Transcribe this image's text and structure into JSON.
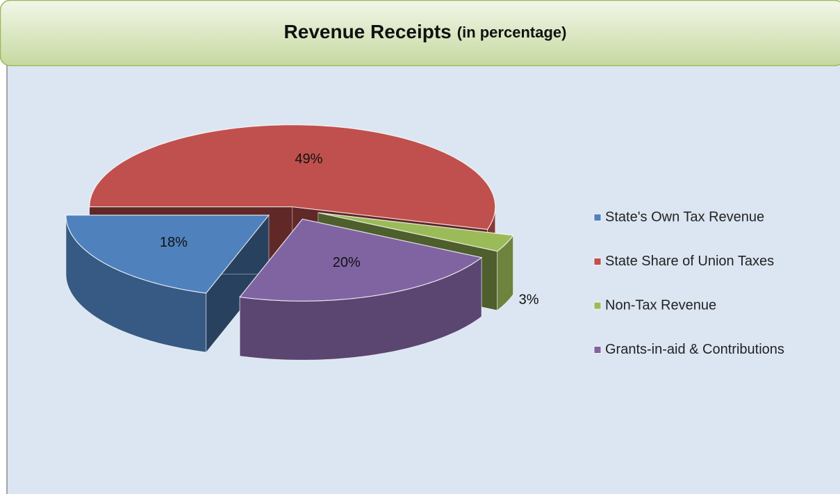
{
  "chart_data": {
    "type": "pie",
    "title": "Revenue Receipts",
    "subtitle": "(in percentage)",
    "categories": [
      "State's Own Tax Revenue",
      "State Share of Union Taxes",
      "Non-Tax Revenue",
      "Grants-in-aid & Contributions"
    ],
    "values": [
      18,
      49,
      3,
      20
    ],
    "value_labels": [
      "18%",
      "49%",
      "3%",
      "20%"
    ],
    "colors": [
      "#4f81bd",
      "#c0504d",
      "#9bbb59",
      "#8064a2"
    ],
    "legend": "right"
  }
}
